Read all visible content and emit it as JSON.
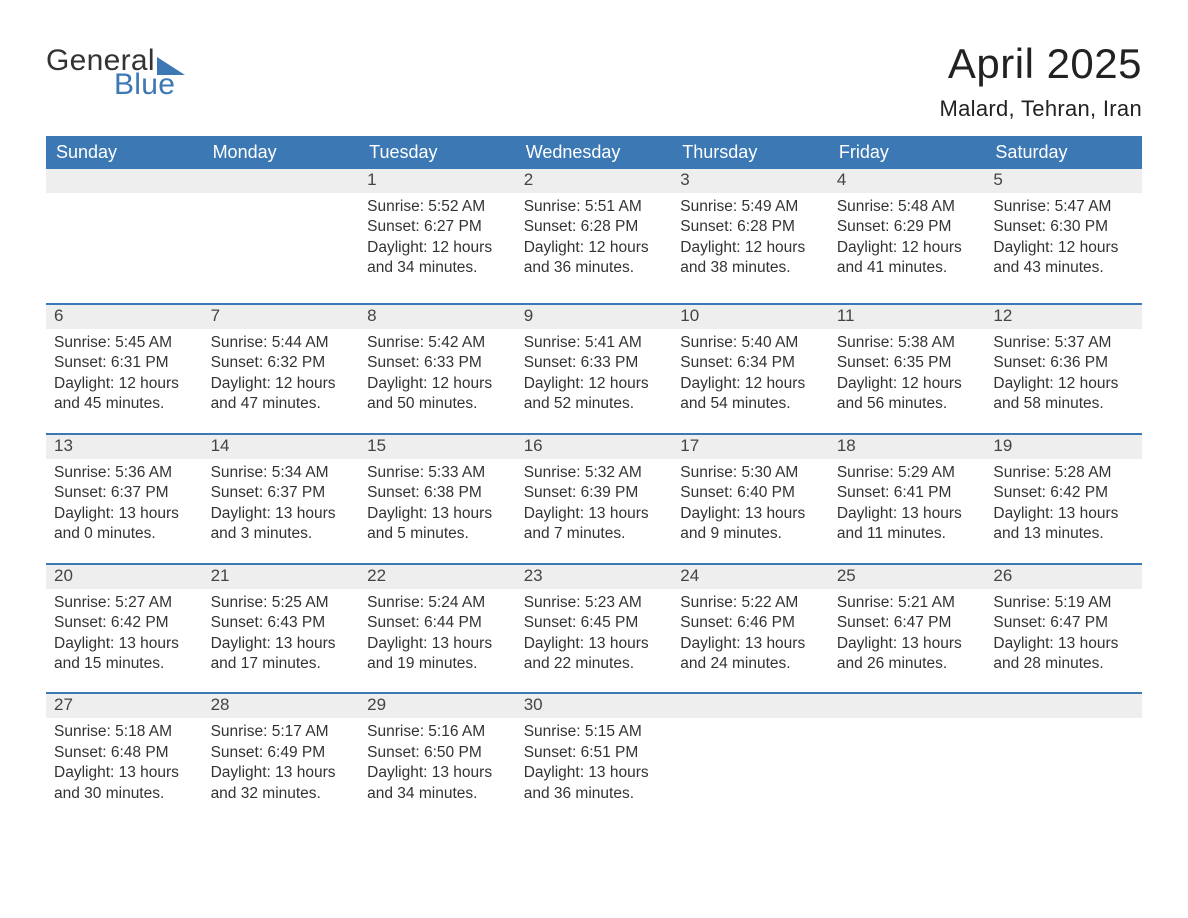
{
  "logo": {
    "text1": "General",
    "text2": "Blue",
    "color_accent": "#3c78b4",
    "color_text": "#333333"
  },
  "header": {
    "month_title": "April 2025",
    "location": "Malard, Tehran, Iran"
  },
  "calendar": {
    "header_bg": "#3c78b4",
    "header_text_color": "#ffffff",
    "row_divider_color": "#3c78b4",
    "daynum_bg": "#eeeeee",
    "text_color": "#333333",
    "weekdays": [
      "Sunday",
      "Monday",
      "Tuesday",
      "Wednesday",
      "Thursday",
      "Friday",
      "Saturday"
    ],
    "weeks": [
      [
        null,
        null,
        {
          "n": "1",
          "sunrise": "5:52 AM",
          "sunset": "6:27 PM",
          "dl_h": "12",
          "dl_m": "34"
        },
        {
          "n": "2",
          "sunrise": "5:51 AM",
          "sunset": "6:28 PM",
          "dl_h": "12",
          "dl_m": "36"
        },
        {
          "n": "3",
          "sunrise": "5:49 AM",
          "sunset": "6:28 PM",
          "dl_h": "12",
          "dl_m": "38"
        },
        {
          "n": "4",
          "sunrise": "5:48 AM",
          "sunset": "6:29 PM",
          "dl_h": "12",
          "dl_m": "41"
        },
        {
          "n": "5",
          "sunrise": "5:47 AM",
          "sunset": "6:30 PM",
          "dl_h": "12",
          "dl_m": "43"
        }
      ],
      [
        {
          "n": "6",
          "sunrise": "5:45 AM",
          "sunset": "6:31 PM",
          "dl_h": "12",
          "dl_m": "45"
        },
        {
          "n": "7",
          "sunrise": "5:44 AM",
          "sunset": "6:32 PM",
          "dl_h": "12",
          "dl_m": "47"
        },
        {
          "n": "8",
          "sunrise": "5:42 AM",
          "sunset": "6:33 PM",
          "dl_h": "12",
          "dl_m": "50"
        },
        {
          "n": "9",
          "sunrise": "5:41 AM",
          "sunset": "6:33 PM",
          "dl_h": "12",
          "dl_m": "52"
        },
        {
          "n": "10",
          "sunrise": "5:40 AM",
          "sunset": "6:34 PM",
          "dl_h": "12",
          "dl_m": "54"
        },
        {
          "n": "11",
          "sunrise": "5:38 AM",
          "sunset": "6:35 PM",
          "dl_h": "12",
          "dl_m": "56"
        },
        {
          "n": "12",
          "sunrise": "5:37 AM",
          "sunset": "6:36 PM",
          "dl_h": "12",
          "dl_m": "58"
        }
      ],
      [
        {
          "n": "13",
          "sunrise": "5:36 AM",
          "sunset": "6:37 PM",
          "dl_h": "13",
          "dl_m": "0"
        },
        {
          "n": "14",
          "sunrise": "5:34 AM",
          "sunset": "6:37 PM",
          "dl_h": "13",
          "dl_m": "3"
        },
        {
          "n": "15",
          "sunrise": "5:33 AM",
          "sunset": "6:38 PM",
          "dl_h": "13",
          "dl_m": "5"
        },
        {
          "n": "16",
          "sunrise": "5:32 AM",
          "sunset": "6:39 PM",
          "dl_h": "13",
          "dl_m": "7"
        },
        {
          "n": "17",
          "sunrise": "5:30 AM",
          "sunset": "6:40 PM",
          "dl_h": "13",
          "dl_m": "9"
        },
        {
          "n": "18",
          "sunrise": "5:29 AM",
          "sunset": "6:41 PM",
          "dl_h": "13",
          "dl_m": "11"
        },
        {
          "n": "19",
          "sunrise": "5:28 AM",
          "sunset": "6:42 PM",
          "dl_h": "13",
          "dl_m": "13"
        }
      ],
      [
        {
          "n": "20",
          "sunrise": "5:27 AM",
          "sunset": "6:42 PM",
          "dl_h": "13",
          "dl_m": "15"
        },
        {
          "n": "21",
          "sunrise": "5:25 AM",
          "sunset": "6:43 PM",
          "dl_h": "13",
          "dl_m": "17"
        },
        {
          "n": "22",
          "sunrise": "5:24 AM",
          "sunset": "6:44 PM",
          "dl_h": "13",
          "dl_m": "19"
        },
        {
          "n": "23",
          "sunrise": "5:23 AM",
          "sunset": "6:45 PM",
          "dl_h": "13",
          "dl_m": "22"
        },
        {
          "n": "24",
          "sunrise": "5:22 AM",
          "sunset": "6:46 PM",
          "dl_h": "13",
          "dl_m": "24"
        },
        {
          "n": "25",
          "sunrise": "5:21 AM",
          "sunset": "6:47 PM",
          "dl_h": "13",
          "dl_m": "26"
        },
        {
          "n": "26",
          "sunrise": "5:19 AM",
          "sunset": "6:47 PM",
          "dl_h": "13",
          "dl_m": "28"
        }
      ],
      [
        {
          "n": "27",
          "sunrise": "5:18 AM",
          "sunset": "6:48 PM",
          "dl_h": "13",
          "dl_m": "30"
        },
        {
          "n": "28",
          "sunrise": "5:17 AM",
          "sunset": "6:49 PM",
          "dl_h": "13",
          "dl_m": "32"
        },
        {
          "n": "29",
          "sunrise": "5:16 AM",
          "sunset": "6:50 PM",
          "dl_h": "13",
          "dl_m": "34"
        },
        {
          "n": "30",
          "sunrise": "5:15 AM",
          "sunset": "6:51 PM",
          "dl_h": "13",
          "dl_m": "36"
        },
        null,
        null,
        null
      ]
    ]
  },
  "labels": {
    "sunrise_prefix": "Sunrise: ",
    "sunset_prefix": "Sunset: ",
    "daylight_prefix": "Daylight: ",
    "hours_word": " hours",
    "and_word": "and ",
    "minutes_word": " minutes."
  }
}
